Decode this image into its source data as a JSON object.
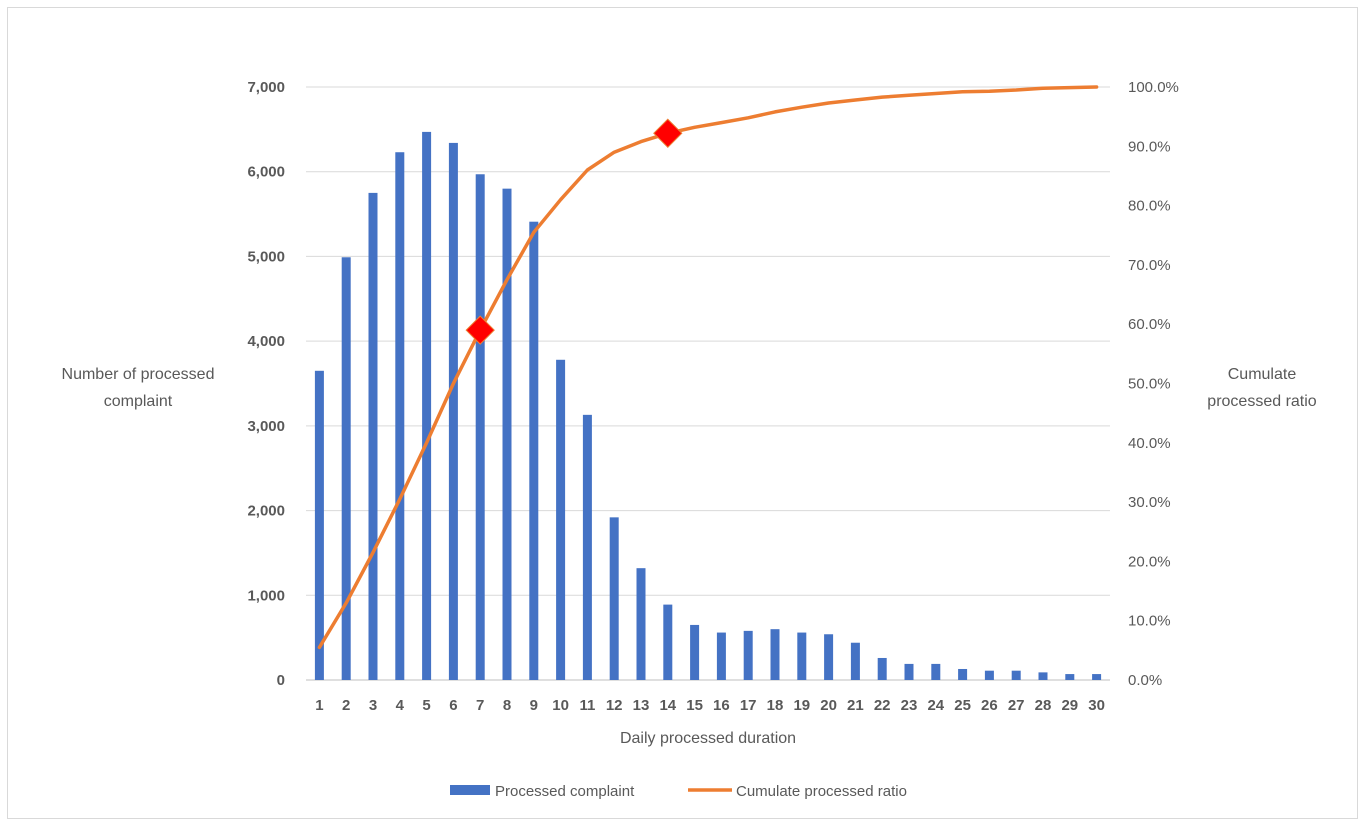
{
  "chart_data": {
    "type": "bar",
    "categories": [
      "1",
      "2",
      "3",
      "4",
      "5",
      "6",
      "7",
      "8",
      "9",
      "10",
      "11",
      "12",
      "13",
      "14",
      "15",
      "16",
      "17",
      "18",
      "19",
      "20",
      "21",
      "22",
      "23",
      "24",
      "25",
      "26",
      "27",
      "28",
      "29",
      "30"
    ],
    "series": [
      {
        "name": "Processed complaint",
        "type": "bar",
        "axis": "left",
        "color": "#4472C4",
        "values": [
          3650,
          4990,
          5750,
          6230,
          6470,
          6340,
          5970,
          5800,
          5410,
          3780,
          3130,
          1920,
          1320,
          890,
          650,
          560,
          580,
          600,
          560,
          540,
          440,
          260,
          190,
          190,
          130,
          110,
          110,
          90,
          70,
          70
        ]
      },
      {
        "name": "Cumulate processed ratio",
        "type": "line",
        "axis": "right",
        "color": "#ED7D31",
        "values": [
          0.055,
          0.13,
          0.215,
          0.305,
          0.4,
          0.5,
          0.59,
          0.675,
          0.755,
          0.81,
          0.86,
          0.89,
          0.908,
          0.922,
          0.932,
          0.94,
          0.948,
          0.958,
          0.966,
          0.973,
          0.978,
          0.983,
          0.986,
          0.989,
          0.992,
          0.993,
          0.995,
          0.998,
          0.999,
          1.0
        ]
      }
    ],
    "highlight_markers": [
      {
        "category": "7",
        "value": 0.59,
        "shape": "diamond",
        "color": "#FF0000"
      },
      {
        "category": "14",
        "value": 0.922,
        "shape": "diamond",
        "color": "#FF0000"
      }
    ],
    "xlabel": "Daily processed duration",
    "ylabel": "Number of processed complaint",
    "y2label": "Cumulate processed ratio",
    "ylim": [
      0,
      7000
    ],
    "y2lim": [
      0,
      1.0
    ],
    "yticks": [
      "0",
      "1,000",
      "2,000",
      "3,000",
      "4,000",
      "5,000",
      "6,000",
      "7,000"
    ],
    "y2ticks": [
      "0.0%",
      "10.0%",
      "20.0%",
      "30.0%",
      "40.0%",
      "50.0%",
      "60.0%",
      "70.0%",
      "80.0%",
      "90.0%",
      "100.0%"
    ],
    "grid": true,
    "legend_position": "bottom"
  },
  "axis_titles": {
    "y_line1": "Number of processed",
    "y_line2": "complaint",
    "y2_line1": "Cumulate",
    "y2_line2": "processed ratio",
    "x": "Daily processed duration"
  },
  "legend": {
    "bar_label": "Processed complaint",
    "line_label": "Cumulate processed ratio"
  }
}
